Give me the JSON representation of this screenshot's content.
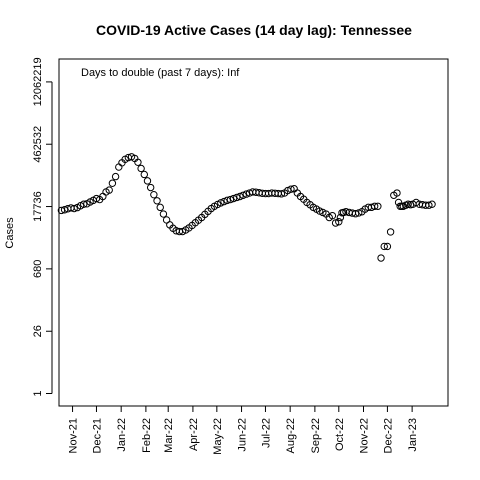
{
  "chart_data": {
    "type": "scatter",
    "title": "COVID-19 Active Cases (14 day lag): Tennessee",
    "xlabel": "",
    "ylabel": "Cases",
    "annotation": "Days to double (past 7 days): Inf",
    "y_scale": "log",
    "y_ticks": [
      1,
      26,
      680,
      17736,
      462532,
      12062219
    ],
    "y_tick_labels": [
      "1",
      "26",
      "680",
      "17736",
      "462532",
      "12062219"
    ],
    "x_ticks": [
      "2021-11-01",
      "2021-12-01",
      "2022-01-01",
      "2022-02-01",
      "2022-03-01",
      "2022-04-01",
      "2022-05-01",
      "2022-06-01",
      "2022-07-01",
      "2022-08-01",
      "2022-09-01",
      "2022-10-01",
      "2022-11-01",
      "2022-12-01",
      "2023-01-01"
    ],
    "x_tick_labels": [
      "Nov-21",
      "Dec-21",
      "Jan-22",
      "Feb-22",
      "Mar-22",
      "Apr-22",
      "May-22",
      "Jun-22",
      "Jul-22",
      "Aug-22",
      "Sep-22",
      "Oct-22",
      "Nov-22",
      "Dec-22",
      "Jan-23"
    ],
    "x_range": [
      "2021-10-15",
      "2023-02-15"
    ],
    "y_range": [
      0.52,
      40000000
    ],
    "grid": false,
    "marker": "open-circle",
    "x": [
      "2021-10-18",
      "2021-10-22",
      "2021-10-26",
      "2021-10-30",
      "2021-11-03",
      "2021-11-07",
      "2021-11-11",
      "2021-11-15",
      "2021-11-19",
      "2021-11-23",
      "2021-11-27",
      "2021-12-01",
      "2021-12-05",
      "2021-12-09",
      "2021-12-13",
      "2021-12-17",
      "2021-12-21",
      "2021-12-25",
      "2021-12-29",
      "2022-01-02",
      "2022-01-06",
      "2022-01-10",
      "2022-01-14",
      "2022-01-18",
      "2022-01-22",
      "2022-01-26",
      "2022-01-30",
      "2022-02-03",
      "2022-02-07",
      "2022-02-11",
      "2022-02-15",
      "2022-02-19",
      "2022-02-23",
      "2022-02-27",
      "2022-03-03",
      "2022-03-07",
      "2022-03-11",
      "2022-03-15",
      "2022-03-19",
      "2022-03-23",
      "2022-03-27",
      "2022-03-31",
      "2022-04-04",
      "2022-04-08",
      "2022-04-12",
      "2022-04-16",
      "2022-04-20",
      "2022-04-24",
      "2022-04-28",
      "2022-05-02",
      "2022-05-06",
      "2022-05-10",
      "2022-05-14",
      "2022-05-18",
      "2022-05-22",
      "2022-05-26",
      "2022-05-30",
      "2022-06-03",
      "2022-06-07",
      "2022-06-11",
      "2022-06-15",
      "2022-06-19",
      "2022-06-23",
      "2022-06-27",
      "2022-07-01",
      "2022-07-05",
      "2022-07-09",
      "2022-07-13",
      "2022-07-17",
      "2022-07-21",
      "2022-07-25",
      "2022-07-29",
      "2022-08-02",
      "2022-08-06",
      "2022-08-10",
      "2022-08-14",
      "2022-08-18",
      "2022-08-22",
      "2022-08-26",
      "2022-08-30",
      "2022-09-03",
      "2022-09-07",
      "2022-09-11",
      "2022-09-15",
      "2022-09-19",
      "2022-09-23",
      "2022-09-27",
      "2022-10-01",
      "2022-10-03",
      "2022-10-05",
      "2022-10-07",
      "2022-10-10",
      "2022-10-14",
      "2022-10-18",
      "2022-10-22",
      "2022-10-26",
      "2022-10-30",
      "2022-11-03",
      "2022-11-07",
      "2022-11-11",
      "2022-11-15",
      "2022-11-19",
      "2022-11-23",
      "2022-11-27",
      "2022-12-01",
      "2022-12-05",
      "2022-12-09",
      "2022-12-13",
      "2022-12-15",
      "2022-12-17",
      "2022-12-19",
      "2022-12-21",
      "2022-12-24",
      "2022-12-27",
      "2022-12-30",
      "2023-01-02",
      "2023-01-06",
      "2023-01-10",
      "2023-01-14",
      "2023-01-18",
      "2023-01-22",
      "2023-01-26"
    ],
    "y": [
      14500,
      15000,
      15800,
      16500,
      16000,
      16800,
      18500,
      20000,
      20500,
      22500,
      24500,
      27000,
      25500,
      30000,
      38000,
      42000,
      60000,
      85000,
      140000,
      175000,
      210000,
      230000,
      240000,
      220000,
      180000,
      130000,
      95000,
      68000,
      48000,
      33000,
      24000,
      17000,
      12000,
      8800,
      6800,
      5700,
      5000,
      4800,
      4800,
      5200,
      5800,
      6600,
      7600,
      8700,
      10000,
      11800,
      13800,
      16000,
      18000,
      19800,
      21500,
      23000,
      24500,
      25500,
      27000,
      28500,
      30000,
      32000,
      34000,
      36000,
      38000,
      37500,
      36500,
      35500,
      35000,
      35000,
      36000,
      35500,
      35000,
      34500,
      36000,
      41000,
      44000,
      45000,
      36000,
      30000,
      26000,
      22000,
      19500,
      17000,
      15500,
      14000,
      13000,
      12000,
      10000,
      11000,
      7500,
      8000,
      10000,
      12800,
      13000,
      13500,
      13000,
      12600,
      12200,
      12700,
      13500,
      15500,
      17000,
      17000,
      18000,
      18000,
      1200,
      2200,
      2200,
      4700,
      32000,
      36000,
      22000,
      18000,
      18000,
      18000,
      19000,
      20000,
      19500,
      20000,
      22000,
      20000,
      19500,
      19000,
      19000,
      20000
    ]
  }
}
